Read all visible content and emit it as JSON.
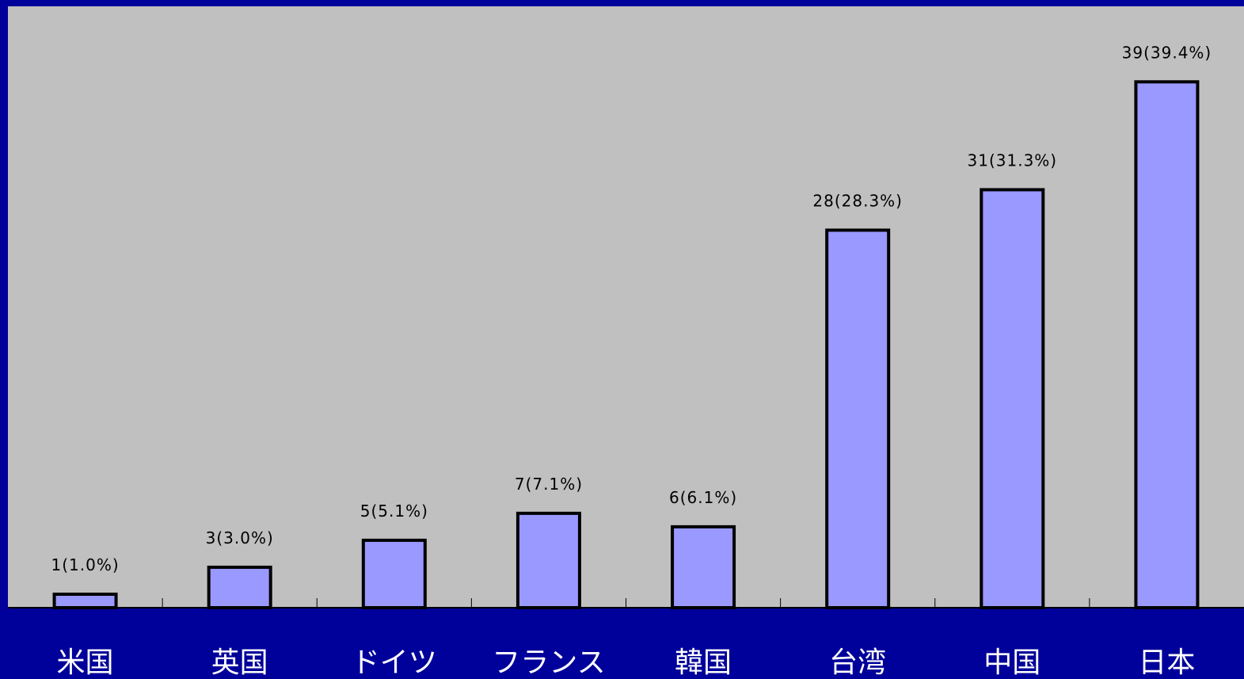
{
  "chart_data": {
    "type": "bar",
    "categories": [
      "米国",
      "英国",
      "ドイツ",
      "フランス",
      "韓国",
      "台湾",
      "中国",
      "日本"
    ],
    "values": [
      1,
      3,
      5,
      7,
      6,
      28,
      31,
      39
    ],
    "data_labels": [
      "1(1.0%)",
      "3(3.0%)",
      "5(5.1%)",
      "7(7.1%)",
      "6(6.1%)",
      "28(28.3%)",
      "31(31.3%)",
      "39(39.4%)"
    ],
    "ylim": [
      0,
      44.6
    ],
    "grid": false,
    "legend": "none"
  },
  "colors": {
    "page_background": "#00009a",
    "plot_background": "#c0c0c0",
    "bar_fill": "#9999ff",
    "bar_stroke": "#000000",
    "axis": "#000000",
    "category_label": "#ffffff",
    "data_label": "#000000"
  }
}
